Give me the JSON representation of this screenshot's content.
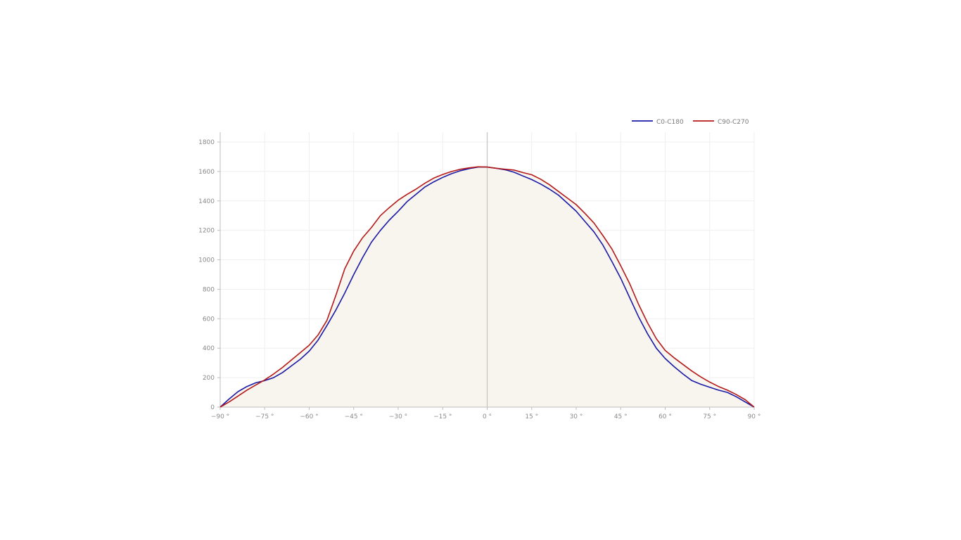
{
  "chart_data": {
    "type": "line",
    "title": "",
    "xlabel": "",
    "ylabel": "",
    "xlim": [
      -90,
      90
    ],
    "ylim": [
      0,
      1870
    ],
    "x_ticks": [
      -90,
      -75,
      -60,
      -45,
      -30,
      -15,
      0,
      15,
      30,
      45,
      60,
      75,
      90
    ],
    "x_tick_labels": [
      "−90 °",
      "−75 °",
      "−60 °",
      "−45 °",
      "−30 °",
      "−15 °",
      "0 °",
      "15 °",
      "30 °",
      "45 °",
      "60 °",
      "75 °",
      "90 °"
    ],
    "y_ticks": [
      0,
      200,
      400,
      600,
      800,
      1000,
      1200,
      1400,
      1600,
      1800
    ],
    "y_tick_labels": [
      "0",
      "200",
      "400",
      "600",
      "800",
      "1000",
      "1200",
      "1400",
      "1600",
      "1800"
    ],
    "grid": true,
    "legend_position": "top-right",
    "fill_color": "#f8f5ee",
    "series": [
      {
        "name": "C0-C180",
        "color": "#1a1aa6",
        "x": [
          -90,
          -87,
          -84,
          -81,
          -78,
          -75,
          -72,
          -69,
          -66,
          -63,
          -60,
          -57,
          -54,
          -51,
          -48,
          -45,
          -42,
          -39,
          -36,
          -33,
          -30,
          -27,
          -24,
          -21,
          -18,
          -15,
          -12,
          -9,
          -6,
          -3,
          0,
          3,
          6,
          9,
          12,
          15,
          18,
          21,
          24,
          27,
          30,
          33,
          36,
          39,
          42,
          45,
          48,
          51,
          54,
          57,
          60,
          63,
          66,
          69,
          72,
          75,
          78,
          81,
          84,
          87,
          90
        ],
        "y": [
          0,
          55,
          105,
          140,
          165,
          180,
          200,
          235,
          280,
          325,
          380,
          455,
          555,
          660,
          775,
          900,
          1015,
          1120,
          1200,
          1270,
          1330,
          1395,
          1445,
          1495,
          1530,
          1560,
          1585,
          1605,
          1620,
          1630,
          1630,
          1622,
          1612,
          1595,
          1570,
          1545,
          1515,
          1480,
          1440,
          1385,
          1330,
          1260,
          1190,
          1100,
          990,
          875,
          745,
          615,
          500,
          400,
          330,
          275,
          225,
          180,
          155,
          135,
          115,
          100,
          70,
          35,
          0
        ]
      },
      {
        "name": "C90-C270",
        "color": "#b51a1a",
        "x": [
          -90,
          -87,
          -84,
          -81,
          -78,
          -75,
          -72,
          -69,
          -66,
          -63,
          -60,
          -57,
          -54,
          -51,
          -48,
          -45,
          -42,
          -39,
          -36,
          -33,
          -30,
          -27,
          -24,
          -21,
          -18,
          -15,
          -12,
          -9,
          -6,
          -3,
          0,
          3,
          6,
          9,
          12,
          15,
          18,
          21,
          24,
          27,
          30,
          33,
          36,
          39,
          42,
          45,
          48,
          51,
          54,
          57,
          60,
          63,
          66,
          69,
          72,
          75,
          78,
          81,
          84,
          87,
          90
        ],
        "y": [
          0,
          35,
          75,
          115,
          150,
          185,
          225,
          270,
          320,
          370,
          420,
          490,
          590,
          760,
          940,
          1060,
          1150,
          1220,
          1300,
          1355,
          1405,
          1445,
          1480,
          1520,
          1555,
          1580,
          1600,
          1615,
          1625,
          1632,
          1630,
          1622,
          1615,
          1610,
          1593,
          1578,
          1548,
          1510,
          1465,
          1420,
          1375,
          1315,
          1250,
          1165,
          1075,
          960,
          840,
          700,
          575,
          465,
          385,
          335,
          290,
          245,
          205,
          170,
          140,
          115,
          85,
          50,
          0
        ]
      }
    ]
  }
}
